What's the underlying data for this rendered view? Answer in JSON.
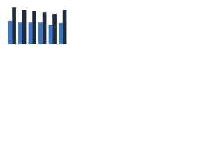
{
  "chart_data": {
    "type": "bar",
    "categories": [
      null,
      null,
      null,
      null,
      null,
      null
    ],
    "series": [
      {
        "color": "#3a74c4",
        "values": [
          57,
          53,
          53,
          53,
          48,
          52
        ]
      },
      {
        "color": "#1c2b3d",
        "values": [
          91,
          84,
          81,
          79,
          74,
          83
        ]
      }
    ],
    "ylim": [
      0,
      100
    ],
    "grid": false
  }
}
